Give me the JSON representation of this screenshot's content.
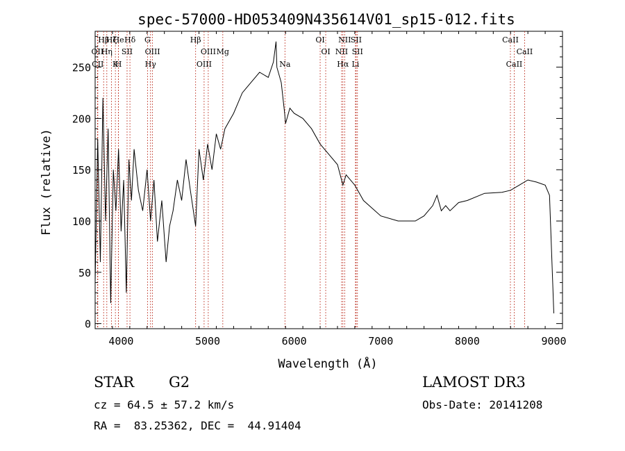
{
  "chart_data": {
    "type": "line",
    "title": "spec-57000-HD053409N435614V01_sp15-012.fits",
    "xlabel": "Wavelength (Å)",
    "ylabel": "Flux (relative)",
    "xlim": [
      3700,
      9100
    ],
    "ylim": [
      -5,
      285
    ],
    "xticks": [
      4000,
      5000,
      6000,
      7000,
      8000,
      9000
    ],
    "yticks": [
      0,
      50,
      100,
      150,
      200,
      250
    ],
    "series": [
      {
        "name": "flux",
        "x": [
          3700,
          3730,
          3760,
          3790,
          3820,
          3850,
          3880,
          3910,
          3940,
          3970,
          4000,
          4030,
          4060,
          4090,
          4120,
          4150,
          4200,
          4250,
          4300,
          4340,
          4380,
          4420,
          4470,
          4520,
          4560,
          4600,
          4650,
          4700,
          4750,
          4800,
          4861,
          4900,
          4950,
          5000,
          5050,
          5100,
          5150,
          5200,
          5300,
          5400,
          5500,
          5600,
          5700,
          5760,
          5790,
          5800,
          5850,
          5890,
          5900,
          5950,
          6000,
          6100,
          6200,
          6300,
          6400,
          6500,
          6563,
          6600,
          6700,
          6800,
          7000,
          7200,
          7400,
          7500,
          7600,
          7650,
          7700,
          7750,
          7800,
          7900,
          8000,
          8200,
          8400,
          8500,
          8600,
          8700,
          8800,
          8900,
          8950,
          9000
        ],
        "y": [
          40,
          180,
          60,
          220,
          100,
          190,
          20,
          150,
          110,
          170,
          90,
          140,
          30,
          160,
          120,
          170,
          130,
          110,
          150,
          100,
          140,
          80,
          120,
          60,
          95,
          110,
          140,
          120,
          160,
          130,
          95,
          170,
          140,
          175,
          150,
          185,
          170,
          190,
          205,
          225,
          235,
          245,
          240,
          255,
          275,
          250,
          235,
          205,
          195,
          210,
          205,
          200,
          190,
          175,
          165,
          155,
          135,
          145,
          135,
          120,
          105,
          100,
          100,
          105,
          115,
          125,
          110,
          115,
          110,
          118,
          120,
          127,
          128,
          130,
          135,
          140,
          138,
          135,
          125,
          10
        ]
      }
    ],
    "lines": [
      {
        "label": "Hβ",
        "wl": 3798
      },
      {
        "label": "OII",
        "wl": 3727
      },
      {
        "label": "CII",
        "wl": 3731
      },
      {
        "label": "Hζ",
        "wl": 3889
      },
      {
        "label": "Hη",
        "wl": 3835
      },
      {
        "label": "K",
        "wl": 3934
      },
      {
        "label": "He",
        "wl": 3970
      },
      {
        "label": "SII",
        "wl": 4069
      },
      {
        "label": "H",
        "wl": 3969
      },
      {
        "label": "Hδ",
        "wl": 4102
      },
      {
        "label": "OIII",
        "wl": 4363
      },
      {
        "label": "Hγ",
        "wl": 4340
      },
      {
        "label": "G",
        "wl": 4305
      },
      {
        "label": "OIII",
        "wl": 5007
      },
      {
        "label": "OIII",
        "wl": 4959
      },
      {
        "label": "Hβ",
        "wl": 4861
      },
      {
        "label": "Mg",
        "wl": 5175
      },
      {
        "label": "Na",
        "wl": 5893
      },
      {
        "label": "OI",
        "wl": 6300
      },
      {
        "label": "OI",
        "wl": 6364
      },
      {
        "label": "Hα",
        "wl": 6563
      },
      {
        "label": "SII",
        "wl": 6716
      },
      {
        "label": "NII",
        "wl": 6548
      },
      {
        "label": "Li",
        "wl": 6708
      },
      {
        "label": "NII",
        "wl": 6583
      },
      {
        "label": "SII",
        "wl": 6731
      },
      {
        "label": "CaII",
        "wl": 8542
      },
      {
        "label": "CaII",
        "wl": 8498
      },
      {
        "label": "CaII",
        "wl": 8662
      }
    ]
  },
  "info": {
    "class_label": "STAR",
    "subclass": "G2",
    "survey": "LAMOST DR3",
    "cz": "cz = 64.5 ± 57.2 km/s",
    "obs_date": "Obs-Date: 20141208",
    "coords": "RA =  83.25362, DEC =  44.91404"
  },
  "colors": {
    "spectrum": "#000000",
    "line_markers": "#c0392b",
    "axes": "#000000"
  }
}
